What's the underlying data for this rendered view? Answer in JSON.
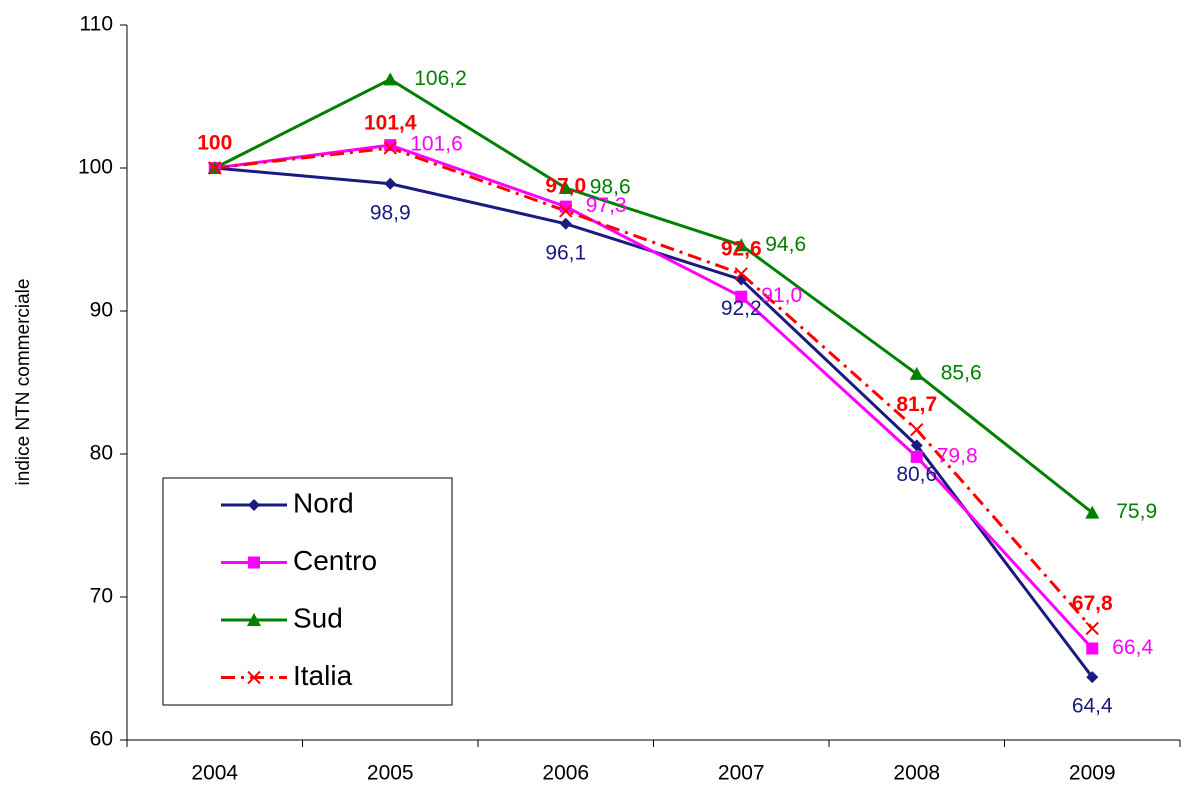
{
  "chart_data": {
    "type": "line",
    "y_label": "indice NTN commerciale",
    "categories": [
      "2004",
      "2005",
      "2006",
      "2007",
      "2008",
      "2009"
    ],
    "ylim": [
      60,
      110
    ],
    "yticks": [
      60,
      70,
      80,
      90,
      100,
      110
    ],
    "grid": false,
    "legend": "lower-left",
    "series": [
      {
        "name": "Nord",
        "color": "#1a1a80",
        "marker": "diamond",
        "dash": "solid",
        "values": [
          100,
          98.9,
          96.1,
          92.2,
          80.6,
          64.4
        ],
        "value_labels": [
          null,
          "98,9",
          "96,1",
          "92,2",
          "80,6",
          "64,4"
        ]
      },
      {
        "name": "Centro",
        "color": "#ff00ff",
        "marker": "square",
        "dash": "solid",
        "values": [
          100,
          101.6,
          97.3,
          91.0,
          79.8,
          66.4
        ],
        "value_labels": [
          null,
          "101,6",
          "97,3",
          "91,0",
          "79,8",
          "66,4"
        ]
      },
      {
        "name": "Sud",
        "color": "#008000",
        "marker": "triangle",
        "dash": "solid",
        "values": [
          100,
          106.2,
          98.6,
          94.6,
          85.6,
          75.9
        ],
        "value_labels": [
          null,
          "106,2",
          "98,6",
          "94,6",
          "85,6",
          "75,9"
        ]
      },
      {
        "name": "Italia",
        "color": "#ff0000",
        "marker": "x",
        "dash": "dashdot",
        "values": [
          100,
          101.4,
          97.0,
          92.6,
          81.7,
          67.8
        ],
        "value_labels": [
          "100",
          "101,4",
          "97,0",
          "92,6",
          "81,7",
          "67,8"
        ]
      }
    ]
  }
}
